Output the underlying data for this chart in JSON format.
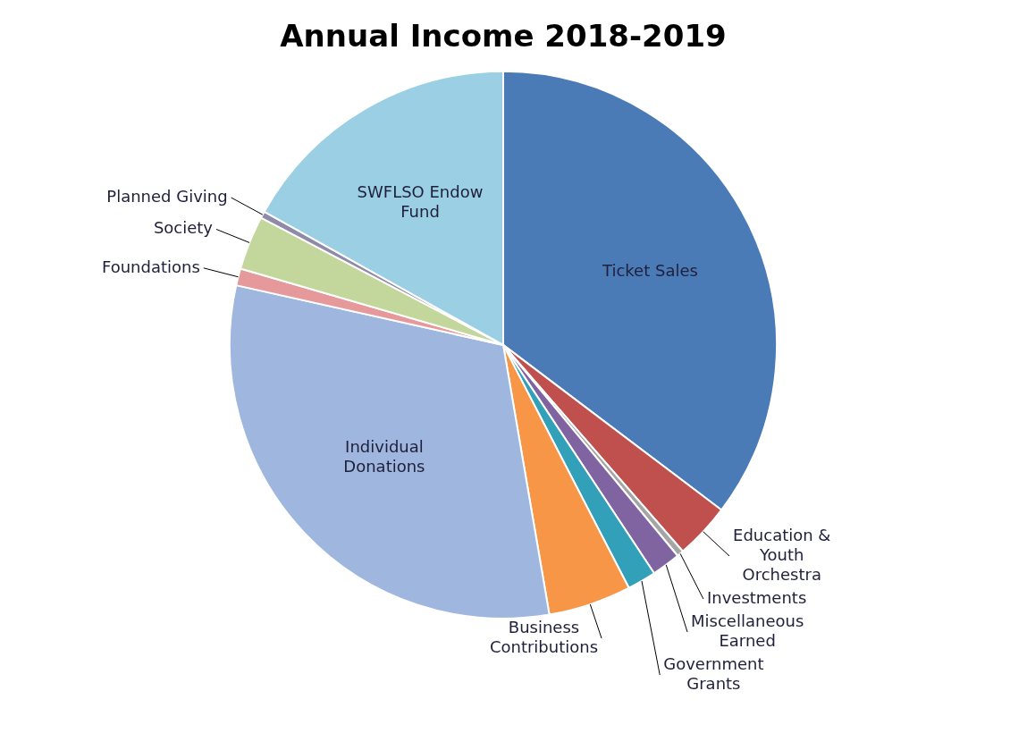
{
  "chart_data": {
    "type": "pie",
    "title": "Annual Income 2018-2019",
    "categories": [
      "Ticket Sales",
      "Education & Youth Orchestra",
      "Investments",
      "Miscellaneous Earned",
      "Government Grants",
      "Business Contributions",
      "Individual Donations",
      "Foundations",
      "Society",
      "Planned Giving",
      "SWFLSO Endow Fund"
    ],
    "values": [
      35.3,
      3.3,
      0.4,
      1.7,
      1.7,
      4.9,
      31.2,
      1.0,
      3.2,
      0.4,
      16.9
    ],
    "colors": [
      "#4a7bb7",
      "#c0504d",
      "#a5a5a5",
      "#8064a2",
      "#31a0b8",
      "#f79646",
      "#9fb6de",
      "#e6999a",
      "#c3d69b",
      "#8f8aa8",
      "#9bcfe4"
    ],
    "legend": false
  }
}
